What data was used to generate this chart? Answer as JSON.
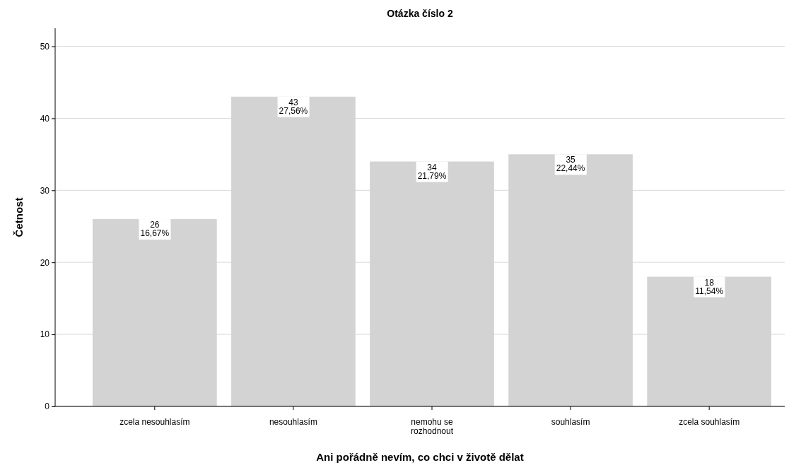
{
  "chart_data": {
    "type": "bar",
    "title": "Otázka číslo 2",
    "xlabel": "Ani pořádně nevím, co chci v životě dělat",
    "ylabel": "Četnost",
    "categories": [
      "zcela nesouhlasím",
      "nesouhlasím",
      "nemohu se rozhodnout",
      "souhlasím",
      "zcela souhlasím"
    ],
    "values": [
      26,
      43,
      34,
      35,
      18
    ],
    "value_labels": [
      "26\n16,67%",
      "43\n27,56%",
      "34\n21,79%",
      "35\n22,44%",
      "18\n11,54%"
    ],
    "color": "#d3d3d3",
    "ylim": [
      0,
      52.5
    ],
    "yticks": [
      0,
      10,
      20,
      30,
      40,
      50
    ],
    "grid": "y"
  }
}
